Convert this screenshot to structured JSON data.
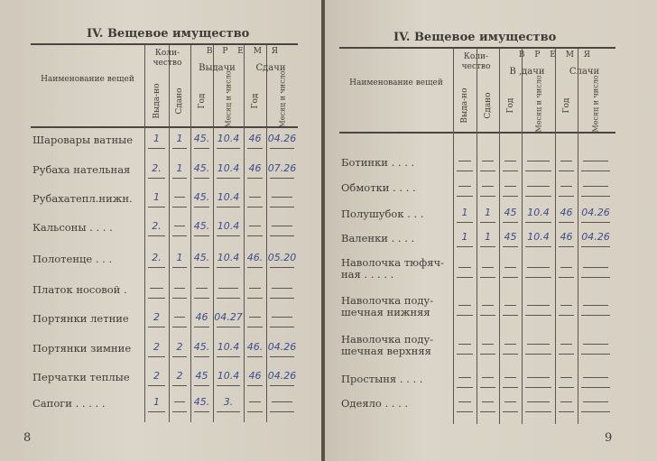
{
  "header": {
    "section_title": "IV. Вещевое имущество",
    "col_name": "Наименование вещей",
    "col_qty": "Коли-чество",
    "col_issued": "Выда-но",
    "col_returned": "Сдано",
    "col_time": "В Р Е М Я",
    "col_issue": "Выдачи",
    "col_return": "Сдачи",
    "col_year": "Год",
    "col_monthday": "Месяц и число"
  },
  "left_page": {
    "page_number": "8",
    "rows": [
      {
        "name": "Шаровары ватные",
        "issued": "1",
        "returned": "1",
        "iy": "45.",
        "imd": "10.4",
        "ry": "46",
        "rmd": "04.26"
      },
      {
        "name": "Рубаха нательная",
        "issued": "2.",
        "returned": "1",
        "iy": "45.",
        "imd": "10.4",
        "ry": "46",
        "rmd": "07.26"
      },
      {
        "name": "Рубахатепл.нижн.",
        "issued": "1",
        "returned": "—",
        "iy": "45.",
        "imd": "10.4",
        "ry": "—",
        "rmd": "—"
      },
      {
        "name": "Кальсоны . . . .",
        "issued": "2.",
        "returned": "—",
        "iy": "45.",
        "imd": "10.4",
        "ry": "—",
        "rmd": "—"
      },
      {
        "name": "Полотенце . . .",
        "issued": "2.",
        "returned": "1",
        "iy": "45.",
        "imd": "10.4",
        "ry": "46.",
        "rmd": "05.20"
      },
      {
        "name": "Платок носовой .",
        "issued": "—",
        "returned": "—",
        "iy": "—",
        "imd": "—",
        "ry": "—",
        "rmd": "—"
      },
      {
        "name": "Портянки летние",
        "issued": "2",
        "returned": "—",
        "iy": "46",
        "imd": "04.27",
        "ry": "—",
        "rmd": "—"
      },
      {
        "name": "Портянки зимние",
        "issued": "2",
        "returned": "2",
        "iy": "45.",
        "imd": "10.4",
        "ry": "46.",
        "rmd": "04.26"
      },
      {
        "name": "Перчатки теплые",
        "issued": "2",
        "returned": "2",
        "iy": "45",
        "imd": "10.4",
        "ry": "46",
        "rmd": "04.26"
      },
      {
        "name": "Сапоги . . . . .",
        "issued": "1",
        "returned": "—",
        "iy": "45.",
        "imd": "3.",
        "ry": "—",
        "rmd": "—"
      }
    ]
  },
  "right_page": {
    "page_number": "9",
    "issue_label": "В ,дачи",
    "return_label": "Слачи",
    "rows": [
      {
        "name": "Ботинки . . . .",
        "issued": "—",
        "returned": "—",
        "iy": "—",
        "imd": "—",
        "ry": "—",
        "rmd": "—"
      },
      {
        "name": "Обмотки . . . .",
        "issued": "—",
        "returned": "—",
        "iy": "—",
        "imd": "—",
        "ry": "—",
        "rmd": "—"
      },
      {
        "name": "Полушубок . . .",
        "issued": "1",
        "returned": "1",
        "iy": "45",
        "imd": "10.4",
        "ry": "46",
        "rmd": "04.26"
      },
      {
        "name": "Валенки . . . .",
        "issued": "1",
        "returned": "1",
        "iy": "45",
        "imd": "10.4",
        "ry": "46",
        "rmd": "04.26"
      },
      {
        "name": "Наволочка тюфяч-\nная . . . . .",
        "issued": "—",
        "returned": "—",
        "iy": "—",
        "imd": "—",
        "ry": "—",
        "rmd": "—"
      },
      {
        "name": "Наволочка поду-\nшечная нижняя",
        "issued": "—",
        "returned": "—",
        "iy": "—",
        "imd": "—",
        "ry": "—",
        "rmd": "—"
      },
      {
        "name": "Наволочка поду-\nшечная верхняя",
        "issued": "—",
        "returned": "—",
        "iy": "—",
        "imd": "—",
        "ry": "—",
        "rmd": "—"
      },
      {
        "name": "Простыня . . . .",
        "issued": "—",
        "returned": "—",
        "iy": "—",
        "imd": "—",
        "ry": "—",
        "rmd": "—"
      },
      {
        "name": "Одеяло . . . .",
        "issued": "—",
        "returned": "—",
        "iy": "—",
        "imd": "—",
        "ry": "—",
        "rmd": "—"
      }
    ]
  }
}
